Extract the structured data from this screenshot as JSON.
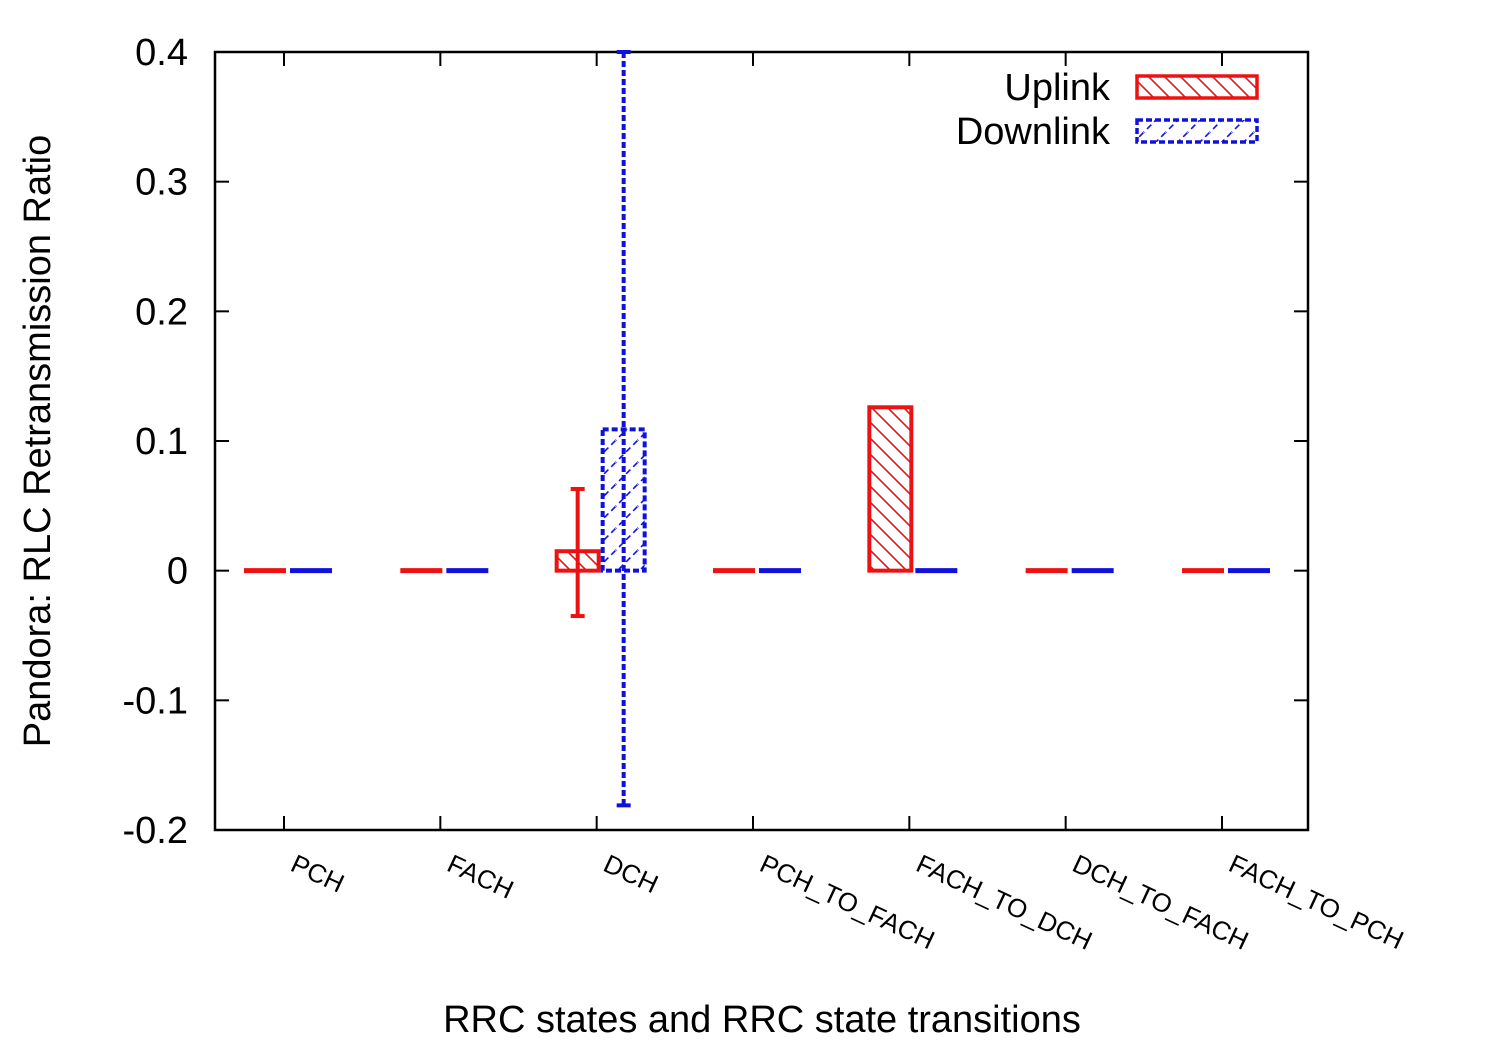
{
  "chart_data": {
    "type": "bar",
    "title": "",
    "xlabel": "RRC states and RRC state transitions",
    "ylabel": "Pandora: RLC Retransmission Ratio",
    "ylim": [
      -0.2,
      0.4
    ],
    "yticks": [
      "-0.2",
      "-0.1",
      "0",
      "0.1",
      "0.2",
      "0.3",
      "0.4"
    ],
    "categories": [
      "PCH",
      "FACH",
      "DCH",
      "PCH_TO_FACH",
      "FACH_TO_DCH",
      "DCH_TO_FACH",
      "FACH_TO_PCH"
    ],
    "series": [
      {
        "name": "Uplink",
        "color": "#ee1111",
        "pattern": "hatch-backslash",
        "values": [
          0,
          0,
          0.015,
          0,
          0.126,
          0,
          0
        ],
        "error_low": [
          null,
          null,
          -0.035,
          null,
          null,
          null,
          null
        ],
        "error_high": [
          null,
          null,
          0.063,
          null,
          null,
          null,
          null
        ]
      },
      {
        "name": "Downlink",
        "color": "#1111dd",
        "pattern": "hatch-slash-dashed",
        "values": [
          0,
          0,
          0.109,
          0,
          0,
          0,
          0
        ],
        "error_low": [
          null,
          null,
          -0.181,
          null,
          null,
          null,
          null
        ],
        "error_high": [
          null,
          null,
          0.4,
          null,
          null,
          null,
          null
        ]
      }
    ],
    "legend_position": "top-right",
    "grid": false
  }
}
